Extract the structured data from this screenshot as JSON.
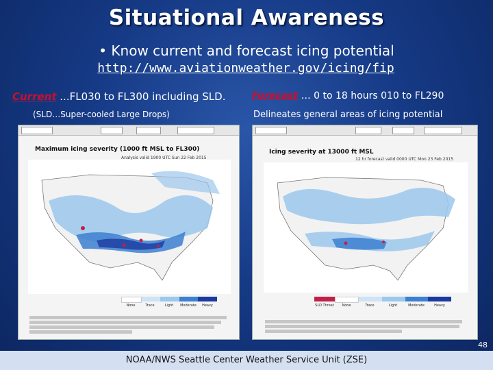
{
  "slide": {
    "title": "Situational Awareness",
    "bullet": "• Know current and forecast icing potential",
    "url": "http://www.aviationweather.gov/icing/fip",
    "current_label": "Current",
    "current_text": " ...FL030 to FL300 including SLD.",
    "sld_text": "(SLD…Super-cooled Large Drops)",
    "forecast_label": "Forecast",
    "forecast_text": " … 0 to 18 hours 010 to FL290",
    "delineates_text": "Delineates general areas of icing potential",
    "page_number": "48",
    "footer": "NOAA/NWS Seattle Center Weather Service Unit (ZSE)"
  },
  "left_panel": {
    "map_title": "Maximum icing severity (1000 ft MSL to FL300)",
    "map_subtitle": "Analysis valid 1900 UTC Sun 22 Feb 2015",
    "legend_labels": [
      "None",
      "Trace",
      "Light",
      "Moderate",
      "Heavy"
    ],
    "colors": {
      "background": "#f4f4f4",
      "land": "#ffffff",
      "icing_light": "#9cc8ec",
      "icing_mod": "#3d7fd0",
      "icing_heavy": "#1a3aa0",
      "sld": "#c0204a"
    }
  },
  "right_panel": {
    "map_title": "Icing severity at 13000 ft MSL",
    "map_subtitle": "12 hr forecast valid 0000 UTC Mon 23 Feb 2015",
    "legend_labels": [
      "SLD Threat",
      "None",
      "Trace",
      "Light",
      "Moderate",
      "Heavy"
    ]
  },
  "colors": {
    "slide_bg": "#163a86",
    "footer_bg": "#d4e0f2",
    "accent_red": "#c8102e"
  }
}
